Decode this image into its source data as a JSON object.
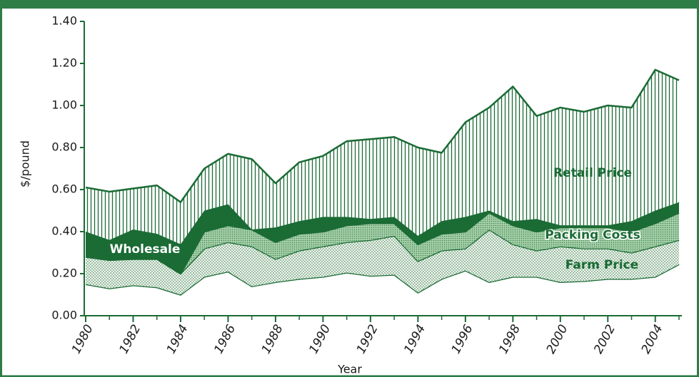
{
  "chart_data": {
    "type": "stacked_area",
    "x": [
      1980,
      1981,
      1982,
      1983,
      1984,
      1985,
      1986,
      1987,
      1988,
      1989,
      1990,
      1991,
      1992,
      1993,
      1994,
      1995,
      1996,
      1997,
      1998,
      1999,
      2000,
      2001,
      2002,
      2003,
      2004,
      2005
    ],
    "series": [
      {
        "color": "#ffffff",
        "pattern": "solid",
        "values": [
          0.15,
          0.13,
          0.145,
          0.135,
          0.1,
          0.185,
          0.21,
          0.14,
          0.16,
          0.175,
          0.185,
          0.205,
          0.19,
          0.195,
          0.11,
          0.175,
          0.215,
          0.16,
          0.185,
          0.185,
          0.16,
          0.165,
          0.175,
          0.175,
          0.185,
          0.245
        ]
      },
      {
        "name": "Farm Price",
        "color": "#1b6b35",
        "pattern": "dots",
        "values": [
          0.13,
          0.135,
          0.125,
          0.135,
          0.1,
          0.135,
          0.14,
          0.19,
          0.11,
          0.135,
          0.145,
          0.145,
          0.17,
          0.185,
          0.15,
          0.135,
          0.105,
          0.25,
          0.155,
          0.125,
          0.17,
          0.155,
          0.145,
          0.125,
          0.145,
          0.115
        ]
      },
      {
        "name": "Packing Costs",
        "color": "#8fbf96",
        "pattern": "dense-dots",
        "values": [
          0,
          0,
          0,
          0,
          0,
          0.08,
          0.08,
          0.08,
          0.08,
          0.08,
          0.07,
          0.08,
          0.08,
          0.06,
          0.08,
          0.08,
          0.08,
          0.08,
          0.09,
          0.09,
          0.09,
          0.1,
          0.1,
          0.1,
          0.11,
          0.13
        ]
      },
      {
        "name": "Wholesale",
        "color": "#1b6b35",
        "pattern": "solid",
        "values": [
          0.12,
          0.095,
          0.14,
          0.12,
          0.14,
          0.1,
          0.1,
          0,
          0.07,
          0.06,
          0.07,
          0.04,
          0.02,
          0.03,
          0.04,
          0.06,
          0.07,
          0.01,
          0.02,
          0.06,
          0.01,
          0.01,
          0.01,
          0.05,
          0.06,
          0.05
        ]
      },
      {
        "name": "Retail Price",
        "color": "#1b6b35",
        "pattern": "vertical-lines",
        "values": [
          0.21,
          0.23,
          0.195,
          0.23,
          0.2,
          0.2,
          0.24,
          0.335,
          0.21,
          0.28,
          0.29,
          0.36,
          0.38,
          0.38,
          0.42,
          0.325,
          0.45,
          0.49,
          0.64,
          0.49,
          0.56,
          0.54,
          0.57,
          0.54,
          0.67,
          0.58
        ]
      }
    ],
    "xlabel": "Year",
    "ylabel": "$/pound",
    "xlim": [
      1980,
      2005
    ],
    "xticks": [
      1980,
      1982,
      1984,
      1986,
      1988,
      1990,
      1992,
      1994,
      1996,
      1998,
      2000,
      2002,
      2004
    ],
    "ylim": [
      0,
      1.4
    ],
    "yticks": [
      {
        "value": 0,
        "label": "0.00"
      },
      {
        "value": 0.2,
        "label": "0.20"
      },
      {
        "value": 0.4,
        "label": "0.40"
      },
      {
        "value": 0.6,
        "label": "0.60"
      },
      {
        "value": 0.8,
        "label": "0.80"
      },
      {
        "value": 1.0,
        "label": "1.00"
      },
      {
        "value": 1.2,
        "label": "1.20"
      },
      {
        "value": 1.4,
        "label": "1.40"
      }
    ],
    "frame_color": "#2e7d46"
  }
}
